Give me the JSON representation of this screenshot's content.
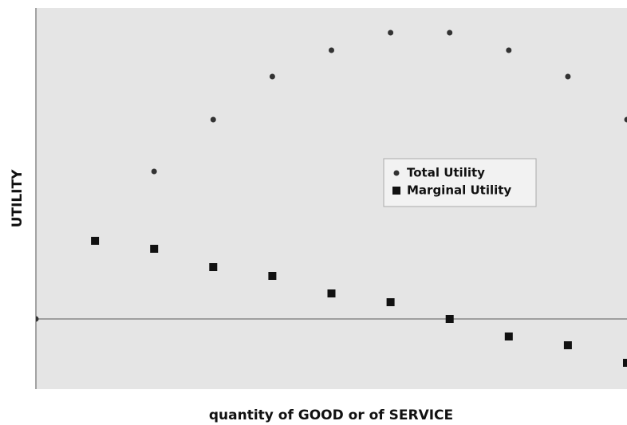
{
  "chart_data": {
    "type": "scatter",
    "xlabel": "quantity of GOOD or of SERVICE",
    "ylabel": "UTILITY",
    "series": [
      {
        "name": "Total Utility",
        "color": "#333333",
        "marker": "circle",
        "x": [
          0,
          2,
          3,
          4,
          5,
          6,
          7,
          8,
          9,
          10
        ],
        "values": [
          0,
          18.5,
          25,
          30.4,
          33.7,
          35.9,
          35.9,
          33.7,
          30.4,
          25
        ]
      },
      {
        "name": "Marginal Utility",
        "color": "#111111",
        "marker": "square",
        "x": [
          1,
          2,
          3,
          4,
          5,
          6,
          7,
          8,
          9,
          10
        ],
        "values": [
          9.8,
          8.8,
          6.5,
          5.4,
          3.2,
          2.1,
          0,
          -2.2,
          -3.3,
          -5.5
        ]
      }
    ],
    "xlim": [
      0,
      10
    ],
    "ylim": [
      -8.8,
      39
    ],
    "legend": "center",
    "grid": false
  }
}
